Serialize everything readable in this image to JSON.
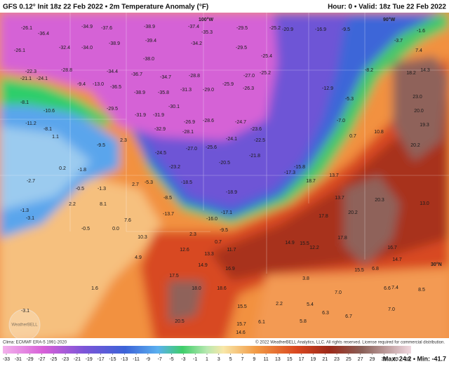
{
  "header": {
    "left": "GFS 0.12° Init 18z 22 Feb 2022 • 2m Temperature Anomaly (°F)",
    "right": "Hour: 0 • Valid: 18z Tue 22 Feb 2022"
  },
  "map": {
    "axis_labels": [
      "100°W",
      "90°W",
      "30°N"
    ],
    "watermark": "WeatherBELL",
    "values": [
      "-26.1",
      "-36.4",
      "-34.9",
      "-37.6",
      "-38.9",
      "-37.4",
      "-35.3",
      "-29.5",
      "-25.2",
      "-20.9",
      "-16.9",
      "-9.5",
      "-1.6",
      "-3.7",
      "7.4",
      "-26.1",
      "-32.4",
      "-34.0",
      "-38.9",
      "-39.4",
      "-34.2",
      "-29.5",
      "-25.4",
      "-22.3",
      "-28.8",
      "-34.4",
      "-36.7",
      "-38.0",
      "-34.7",
      "-28.8",
      "-27.0",
      "-25.2",
      "-21.1",
      "-24.1",
      "-9.4",
      "-13.0",
      "-36.5",
      "-38.9",
      "-35.8",
      "-31.3",
      "-29.0",
      "-25.9",
      "-26.3",
      "-8.1",
      "-10.6",
      "-29.5",
      "-31.9",
      "-31.9",
      "-30.1",
      "-28.6",
      "-26.9",
      "-24.7",
      "-23.6",
      "-11.2",
      "-8.1",
      "-32.9",
      "-28.1",
      "-24.1",
      "-22.5",
      "2.3",
      "-24.5",
      "-27.0",
      "-25.6",
      "-20.5",
      "-21.8",
      "-15.8",
      "-23.2",
      "-18.5",
      "-18.9",
      "-17.3",
      "-8.5",
      "-13.7",
      "-16.0",
      "-17.1",
      "-9.5",
      "2.3",
      "0.7",
      "10.3",
      "12.6",
      "13.3",
      "14.9",
      "16.9",
      "17.5",
      "18.0",
      "18.6",
      "15.5",
      "20.5",
      "15.7",
      "14.6",
      "11.7",
      "-12.9",
      "-8.2",
      "-5.3",
      "-7.0",
      "0.7",
      "10.8",
      "20.2",
      "19.3",
      "20.0",
      "23.0",
      "18.2",
      "14.3",
      "13.7",
      "18.7",
      "13.7",
      "20.2",
      "13.0",
      "20.3",
      "17.8",
      "14.9",
      "15.5",
      "12.2",
      "17.8",
      "16.7",
      "14.7",
      "15.5",
      "6.8",
      "6.6",
      "7.4",
      "8.5",
      "3.8",
      "2.2",
      "5.4",
      "7.0",
      "6.3",
      "6.7",
      "7.0",
      "5.8",
      "6.1",
      "-2.7",
      "-1.3",
      "-3.1",
      "-3.1",
      "1.6",
      "2.2",
      "8.1",
      "7.6",
      "-0.5",
      "-1.3",
      "0.2",
      "-1.8",
      "-0.5",
      "0.0",
      "4.9",
      "-9.5",
      "1.1",
      "2.7",
      "-5.3"
    ]
  },
  "footer": {
    "clima": "Clima: ECMWF ERA-5 1991-2020",
    "copyright": "© 2022 WeatherBELL Analytics, LLC. All rights reserved. License required for commercial distribution.",
    "stats": "Max: 24.2 • Min: -41.7"
  },
  "colorbar": {
    "ticks": [
      -33,
      -31,
      -29,
      -27,
      -25,
      -23,
      -21,
      -19,
      -17,
      -15,
      -13,
      -11,
      -9,
      -7,
      -5,
      -3,
      -1,
      1,
      3,
      5,
      7,
      9,
      11,
      13,
      15,
      17,
      19,
      21,
      23,
      25,
      27,
      29,
      31,
      33,
      35
    ]
  }
}
